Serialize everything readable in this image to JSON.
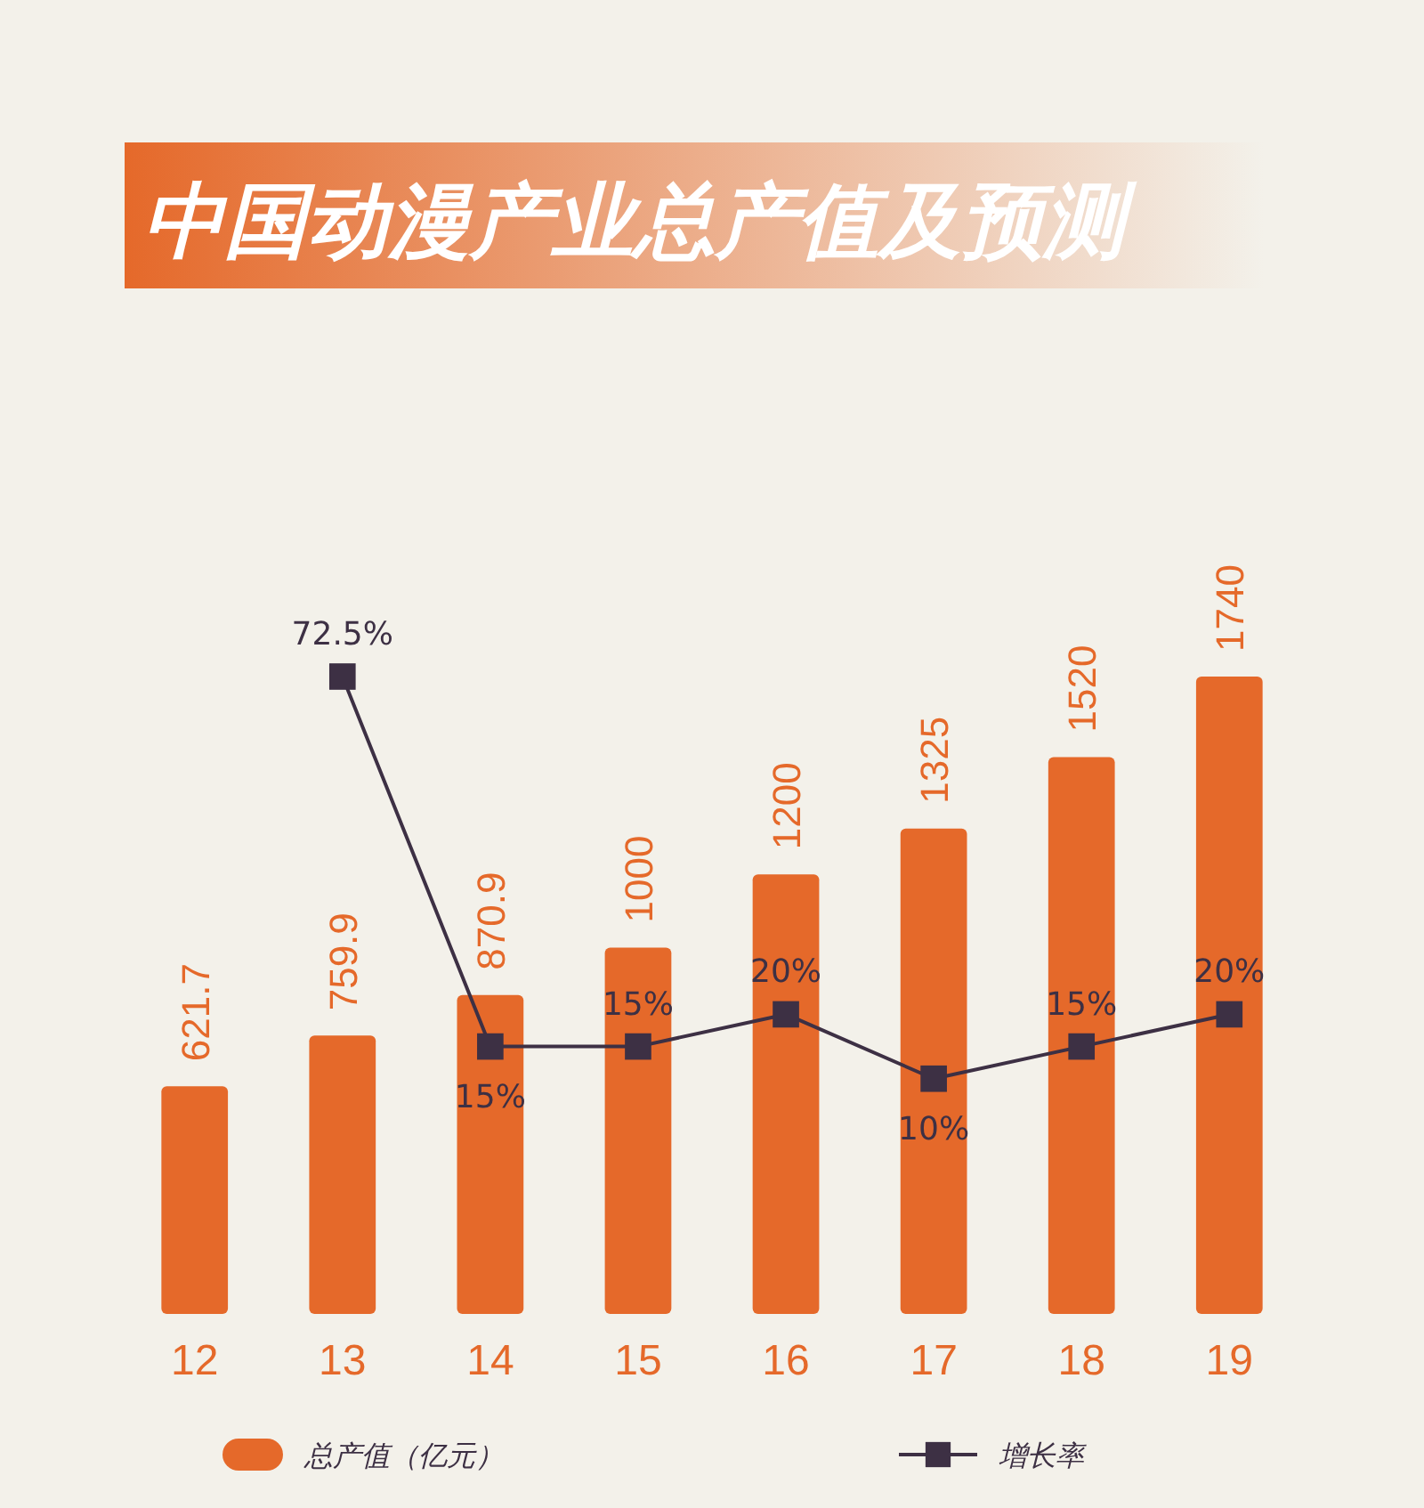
{
  "chart_data": {
    "type": "bar",
    "title": "中国动漫产业总产值及预测",
    "categories": [
      "12",
      "13",
      "14",
      "15",
      "16",
      "17",
      "18",
      "19"
    ],
    "series": [
      {
        "name": "总产值（亿元）",
        "color": "#e5692a",
        "values": [
          621.7,
          759.9,
          870.9,
          1000,
          1200,
          1325,
          1520,
          1740
        ]
      },
      {
        "name": "增长率",
        "type": "line",
        "axis": "y2",
        "color": "#3d3044",
        "values": [
          null,
          72.5,
          15,
          15,
          20,
          10,
          15,
          20
        ],
        "value_labels": [
          null,
          "72.5%",
          "15%",
          "15%",
          "20%",
          "10%",
          "15%",
          "20%"
        ]
      }
    ],
    "tick_labels": "x",
    "data_labels": true,
    "marker": "square",
    "legend": "bottom"
  }
}
